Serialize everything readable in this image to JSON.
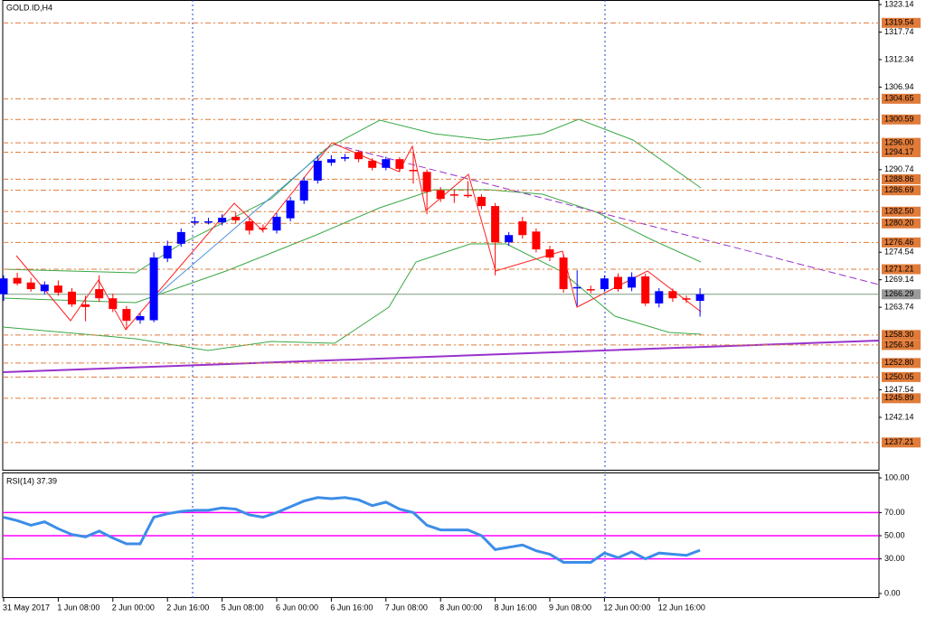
{
  "chart_data": [
    {
      "type": "candlestick",
      "title": "GOLD.ID,H4",
      "categories": [
        "31 May 2017",
        null,
        null,
        null,
        "1 Jun 08:00",
        null,
        null,
        null,
        "2 Jun 00:00",
        null,
        null,
        null,
        "2 Jun 16:00",
        null,
        null,
        null,
        "5 Jun 08:00",
        null,
        null,
        null,
        "6 Jun 00:00",
        null,
        null,
        null,
        "6 Jun 16:00",
        null,
        null,
        null,
        "7 Jun 08:00",
        null,
        null,
        null,
        "8 Jun 00:00",
        null,
        null,
        null,
        "8 Jun 16:00",
        null,
        null,
        null,
        "9 Jun 08:00",
        null,
        null,
        null,
        "12 Jun 00:00",
        null,
        null,
        null,
        "12 Jun 16:00",
        null,
        null,
        null
      ],
      "open": [
        1266.3,
        1269.5,
        1268.6,
        1266.9,
        1268.0,
        1266.8,
        1264.3,
        1267.3,
        1265.5,
        1263.4,
        1261.2,
        1261.2,
        1273.3,
        1276.2,
        1280.4,
        1280.5,
        1280.4,
        1281.5,
        1280.6,
        1279.3,
        1278.8,
        1281.2,
        1284.7,
        1288.6,
        1292.1,
        1292.9,
        1294.2,
        1292.5,
        1291.1,
        1292.8,
        1290.7,
        1290.3,
        1286.7,
        1285.9,
        1285.8,
        1285.4,
        1283.6,
        1276.5,
        1280.6,
        1278.6,
        1275.1,
        1273.5,
        1267.6,
        1267.3,
        1267.3,
        1269.7,
        1267.6,
        1269.8,
        1264.5,
        1266.9,
        1265.5,
        1265.0
      ],
      "high": [
        1270.0,
        1270.5,
        1269.5,
        1268.8,
        1269.0,
        1267.5,
        1266.0,
        1270.0,
        1266.4,
        1264.0,
        1262.6,
        1274.5,
        1276.8,
        1279.2,
        1281.5,
        1281.3,
        1282.0,
        1282.4,
        1281.2,
        1280.0,
        1282.2,
        1285.4,
        1289.3,
        1293.5,
        1293.6,
        1293.8,
        1294.5,
        1293.0,
        1293.3,
        1293.2,
        1294.0,
        1290.8,
        1287.3,
        1286.8,
        1288.5,
        1285.9,
        1284.2,
        1278.5,
        1281.5,
        1279.2,
        1275.8,
        1274.2,
        1271.0,
        1268.0,
        1270.0,
        1270.4,
        1270.6,
        1270.3,
        1267.5,
        1267.4,
        1266.0,
        1267.5
      ],
      "low": [
        1265.0,
        1268.0,
        1266.8,
        1266.3,
        1266.0,
        1263.8,
        1261.0,
        1264.8,
        1262.8,
        1259.4,
        1260.5,
        1260.8,
        1272.6,
        1275.6,
        1279.8,
        1280.0,
        1279.8,
        1280.2,
        1278.0,
        1278.4,
        1278.2,
        1280.6,
        1284.0,
        1288.0,
        1291.5,
        1292.4,
        1292.2,
        1290.6,
        1290.6,
        1290.3,
        1288.0,
        1282.0,
        1284.4,
        1284.2,
        1285.2,
        1283.0,
        1270.0,
        1275.8,
        1277.2,
        1274.5,
        1272.8,
        1266.6,
        1264.0,
        1266.5,
        1266.8,
        1266.8,
        1266.9,
        1264.0,
        1263.7,
        1264.8,
        1264.6,
        1261.9
      ],
      "close": [
        1269.4,
        1268.4,
        1267.3,
        1268.2,
        1266.6,
        1264.3,
        1263.8,
        1265.5,
        1263.4,
        1261.1,
        1262.0,
        1273.5,
        1275.8,
        1278.5,
        1280.6,
        1280.6,
        1281.3,
        1280.8,
        1278.8,
        1279.1,
        1281.5,
        1284.7,
        1288.6,
        1292.5,
        1292.8,
        1293.2,
        1292.8,
        1291.1,
        1292.8,
        1290.9,
        1290.6,
        1286.4,
        1285.0,
        1285.8,
        1285.6,
        1283.6,
        1276.5,
        1277.9,
        1277.9,
        1275.1,
        1273.5,
        1267.3,
        1267.7,
        1267.2,
        1269.4,
        1267.3,
        1269.7,
        1264.5,
        1266.9,
        1265.5,
        1265.3,
        1266.3
      ],
      "up_color": "#0000ff",
      "down_color": "#ff0000",
      "ylim": [
        1231.86,
        1324.03
      ],
      "yticks": [
        1323.14,
        1317.74,
        1312.34,
        1306.94,
        1290.74,
        1274.54,
        1269.14,
        1263.74,
        1247.54,
        1242.14
      ],
      "levels": [
        {
          "value": 1319.54,
          "label": "1319.54"
        },
        {
          "value": 1304.65,
          "label": "1304.65"
        },
        {
          "value": 1300.59,
          "label": "1300.59"
        },
        {
          "value": 1296,
          "label": "1296.00"
        },
        {
          "value": 1294.17,
          "label": "1294.17"
        },
        {
          "value": 1288.86,
          "label": "1288.86"
        },
        {
          "value": 1286.69,
          "label": "1286.69"
        },
        {
          "value": 1282.5,
          "label": "1282.50"
        },
        {
          "value": 1280.2,
          "label": "1280.20"
        },
        {
          "value": 1276.46,
          "label": "1276.46"
        },
        {
          "value": 1271.21,
          "label": "1271.21"
        },
        {
          "value": 1258.3,
          "label": "1258.30"
        },
        {
          "value": 1256.34,
          "label": "1256.34"
        },
        {
          "value": 1252.8,
          "label": "1252.80"
        },
        {
          "value": 1250.05,
          "label": "1250.05"
        },
        {
          "value": 1245.89,
          "label": "1245.89"
        },
        {
          "value": 1237.21,
          "label": "1237.21"
        }
      ],
      "level_color": "#e07b39",
      "current_price": {
        "value": 1266.29,
        "label": "1266.29"
      }
    },
    {
      "type": "line",
      "title": "RSI(14) 37.39",
      "color": "#3c8de8",
      "values": [
        66,
        63,
        59,
        62,
        56,
        51,
        49,
        54,
        48,
        43,
        43,
        66,
        69,
        71,
        72,
        72,
        74,
        73,
        68,
        66,
        70,
        75,
        80,
        83,
        82,
        83,
        81,
        76,
        79,
        73,
        70,
        59,
        55,
        55,
        55,
        50,
        38,
        40,
        42,
        37,
        34,
        27,
        27,
        27,
        35,
        31,
        36,
        30,
        35,
        34,
        33,
        37.39
      ],
      "ylim": [
        -3.9,
        103.9
      ],
      "yticks": [
        {
          "value": 100,
          "label": "100.00"
        },
        {
          "value": 70,
          "label": "70.00"
        },
        {
          "value": 50,
          "label": "50.00"
        },
        {
          "value": 30,
          "label": "30.00"
        },
        {
          "value": 0,
          "label": "0.00"
        }
      ],
      "levels": [
        70,
        50,
        30
      ],
      "level_color": "#ff00ff"
    }
  ]
}
